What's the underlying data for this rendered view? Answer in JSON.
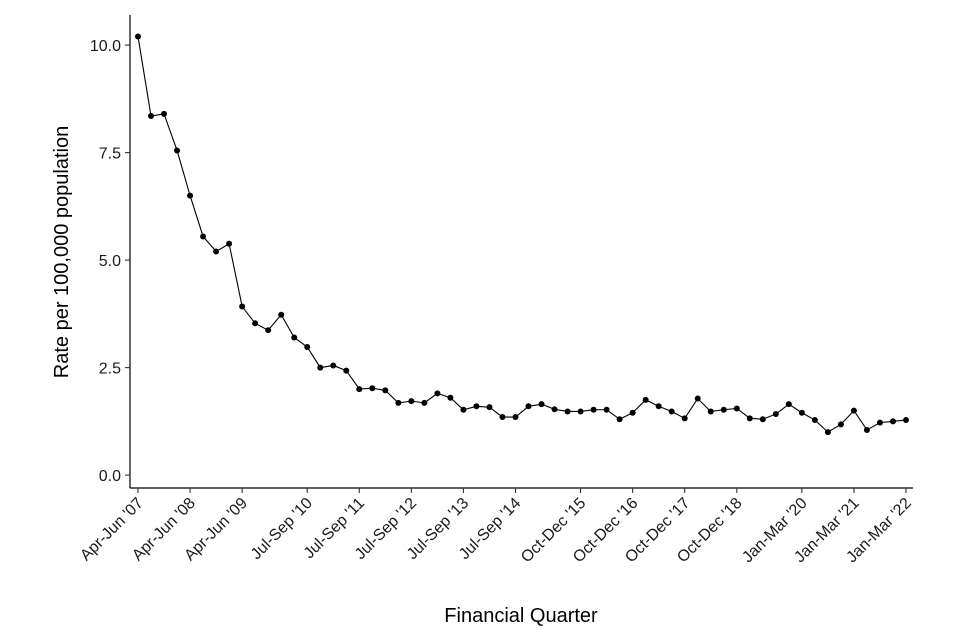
{
  "chart_data": {
    "type": "line",
    "title": "",
    "xlabel": "Financial Quarter",
    "ylabel": "Rate per 100,000 population",
    "ylim": [
      -0.3,
      10.7
    ],
    "yticks": [
      0.0,
      2.5,
      5.0,
      7.5,
      10.0
    ],
    "ytick_labels": [
      "0.0",
      "2.5",
      "5.0",
      "7.5",
      "10.0"
    ],
    "xtick_labels": [
      {
        "index": 0,
        "label": "Apr-Jun '07"
      },
      {
        "index": 4,
        "label": "Apr-Jun '08"
      },
      {
        "index": 8,
        "label": "Apr-Jun '09"
      },
      {
        "index": 13,
        "label": "Jul-Sep '10"
      },
      {
        "index": 17,
        "label": "Jul-Sep '11"
      },
      {
        "index": 21,
        "label": "Jul-Sep '12"
      },
      {
        "index": 25,
        "label": "Jul-Sep '13"
      },
      {
        "index": 29,
        "label": "Jul-Sep '14"
      },
      {
        "index": 34,
        "label": "Oct-Dec '15"
      },
      {
        "index": 38,
        "label": "Oct-Dec '16"
      },
      {
        "index": 42,
        "label": "Oct-Dec '17"
      },
      {
        "index": 46,
        "label": "Oct-Dec '18"
      },
      {
        "index": 51,
        "label": "Jan-Mar '20"
      },
      {
        "index": 55,
        "label": "Jan-Mar '21"
      },
      {
        "index": 59,
        "label": "Jan-Mar '22"
      }
    ],
    "grid": false,
    "legend": "none",
    "series": [
      {
        "color": "#000000",
        "values": [
          10.2,
          8.35,
          8.4,
          7.55,
          6.5,
          5.55,
          5.2,
          5.38,
          3.92,
          3.53,
          3.37,
          3.73,
          3.2,
          2.98,
          2.5,
          2.55,
          2.43,
          2.0,
          2.02,
          1.97,
          1.68,
          1.72,
          1.68,
          1.9,
          1.8,
          1.52,
          1.6,
          1.58,
          1.35,
          1.35,
          1.6,
          1.65,
          1.53,
          1.48,
          1.48,
          1.52,
          1.52,
          1.3,
          1.45,
          1.75,
          1.6,
          1.48,
          1.32,
          1.78,
          1.48,
          1.52,
          1.55,
          1.32,
          1.3,
          1.42,
          1.65,
          1.45,
          1.28,
          1.0,
          1.18,
          1.5,
          1.05,
          1.22,
          1.25,
          1.28
        ]
      }
    ]
  }
}
